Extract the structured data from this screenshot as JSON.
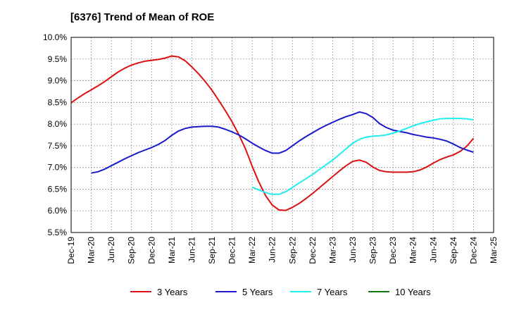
{
  "chart_data": {
    "type": "line",
    "title": "[6376]  Trend of Mean of ROE",
    "xlabel": "",
    "ylabel": "",
    "x_ticks": [
      "Dec-19",
      "Mar-20",
      "Jun-20",
      "Sep-20",
      "Dec-20",
      "Mar-21",
      "Jun-21",
      "Sep-21",
      "Dec-21",
      "Mar-22",
      "Jun-22",
      "Sep-22",
      "Dec-22",
      "Mar-23",
      "Jun-23",
      "Sep-23",
      "Dec-23",
      "Mar-24",
      "Jun-24",
      "Sep-24",
      "Dec-24",
      "Mar-25"
    ],
    "y_ticks": [
      "5.5%",
      "6.0%",
      "6.5%",
      "7.0%",
      "7.5%",
      "8.0%",
      "8.5%",
      "9.0%",
      "9.5%",
      "10.0%"
    ],
    "ylim": [
      5.5,
      10.0
    ],
    "grid": true,
    "legend_position": "bottom",
    "series": [
      {
        "name": "3 Years",
        "color": "#dd1111",
        "values": [
          [
            "Dec-19",
            8.49
          ],
          [
            "Jan-20",
            8.6
          ],
          [
            "Feb-20",
            8.7
          ],
          [
            "Mar-20",
            8.79
          ],
          [
            "Apr-20",
            8.88
          ],
          [
            "May-20",
            8.98
          ],
          [
            "Jun-20",
            9.09
          ],
          [
            "Jul-20",
            9.2
          ],
          [
            "Aug-20",
            9.29
          ],
          [
            "Sep-20",
            9.36
          ],
          [
            "Oct-20",
            9.41
          ],
          [
            "Nov-20",
            9.45
          ],
          [
            "Dec-20",
            9.47
          ],
          [
            "Jan-21",
            9.49
          ],
          [
            "Feb-21",
            9.52
          ],
          [
            "Mar-21",
            9.57
          ],
          [
            "Apr-21",
            9.55
          ],
          [
            "May-21",
            9.46
          ],
          [
            "Jun-21",
            9.32
          ],
          [
            "Jul-21",
            9.16
          ],
          [
            "Aug-21",
            8.98
          ],
          [
            "Sep-21",
            8.78
          ],
          [
            "Oct-21",
            8.55
          ],
          [
            "Nov-21",
            8.31
          ],
          [
            "Dec-21",
            8.05
          ],
          [
            "Jan-22",
            7.76
          ],
          [
            "Feb-22",
            7.43
          ],
          [
            "Mar-22",
            7.03
          ],
          [
            "Apr-22",
            6.66
          ],
          [
            "May-22",
            6.35
          ],
          [
            "Jun-22",
            6.13
          ],
          [
            "Jul-22",
            6.02
          ],
          [
            "Aug-22",
            6.01
          ],
          [
            "Sep-22",
            6.08
          ],
          [
            "Oct-22",
            6.17
          ],
          [
            "Nov-22",
            6.28
          ],
          [
            "Dec-22",
            6.4
          ],
          [
            "Jan-23",
            6.53
          ],
          [
            "Feb-23",
            6.66
          ],
          [
            "Mar-23",
            6.79
          ],
          [
            "Apr-23",
            6.92
          ],
          [
            "May-23",
            7.04
          ],
          [
            "Jun-23",
            7.14
          ],
          [
            "Jul-23",
            7.17
          ],
          [
            "Aug-23",
            7.12
          ],
          [
            "Sep-23",
            7.01
          ],
          [
            "Oct-23",
            6.93
          ],
          [
            "Nov-23",
            6.9
          ],
          [
            "Dec-23",
            6.89
          ],
          [
            "Jan-24",
            6.89
          ],
          [
            "Feb-24",
            6.89
          ],
          [
            "Mar-24",
            6.9
          ],
          [
            "Apr-24",
            6.94
          ],
          [
            "May-24",
            7.01
          ],
          [
            "Jun-24",
            7.1
          ],
          [
            "Jul-24",
            7.18
          ],
          [
            "Aug-24",
            7.24
          ],
          [
            "Sep-24",
            7.29
          ],
          [
            "Oct-24",
            7.37
          ],
          [
            "Nov-24",
            7.49
          ],
          [
            "Dec-24",
            7.67
          ]
        ]
      },
      {
        "name": "5 Years",
        "color": "#1a1acc",
        "values": [
          [
            "Mar-20",
            6.87
          ],
          [
            "Apr-20",
            6.9
          ],
          [
            "May-20",
            6.96
          ],
          [
            "Jun-20",
            7.04
          ],
          [
            "Jul-20",
            7.12
          ],
          [
            "Aug-20",
            7.2
          ],
          [
            "Sep-20",
            7.27
          ],
          [
            "Oct-20",
            7.34
          ],
          [
            "Nov-20",
            7.4
          ],
          [
            "Dec-20",
            7.46
          ],
          [
            "Jan-21",
            7.53
          ],
          [
            "Feb-21",
            7.62
          ],
          [
            "Mar-21",
            7.74
          ],
          [
            "Apr-21",
            7.84
          ],
          [
            "May-21",
            7.9
          ],
          [
            "Jun-21",
            7.93
          ],
          [
            "Jul-21",
            7.94
          ],
          [
            "Aug-21",
            7.95
          ],
          [
            "Sep-21",
            7.95
          ],
          [
            "Oct-21",
            7.93
          ],
          [
            "Nov-21",
            7.88
          ],
          [
            "Dec-21",
            7.82
          ],
          [
            "Jan-22",
            7.75
          ],
          [
            "Feb-22",
            7.66
          ],
          [
            "Mar-22",
            7.56
          ],
          [
            "Apr-22",
            7.47
          ],
          [
            "May-22",
            7.39
          ],
          [
            "Jun-22",
            7.33
          ],
          [
            "Jul-22",
            7.33
          ],
          [
            "Aug-22",
            7.39
          ],
          [
            "Sep-22",
            7.5
          ],
          [
            "Oct-22",
            7.61
          ],
          [
            "Nov-22",
            7.71
          ],
          [
            "Dec-22",
            7.8
          ],
          [
            "Jan-23",
            7.89
          ],
          [
            "Feb-23",
            7.97
          ],
          [
            "Mar-23",
            8.04
          ],
          [
            "Apr-23",
            8.11
          ],
          [
            "May-23",
            8.17
          ],
          [
            "Jun-23",
            8.22
          ],
          [
            "Jul-23",
            8.28
          ],
          [
            "Aug-23",
            8.24
          ],
          [
            "Sep-23",
            8.15
          ],
          [
            "Oct-23",
            8.01
          ],
          [
            "Nov-23",
            7.92
          ],
          [
            "Dec-23",
            7.86
          ],
          [
            "Jan-24",
            7.83
          ],
          [
            "Feb-24",
            7.8
          ],
          [
            "Mar-24",
            7.76
          ],
          [
            "Apr-24",
            7.73
          ],
          [
            "May-24",
            7.7
          ],
          [
            "Jun-24",
            7.68
          ],
          [
            "Jul-24",
            7.65
          ],
          [
            "Aug-24",
            7.61
          ],
          [
            "Sep-24",
            7.54
          ],
          [
            "Oct-24",
            7.46
          ],
          [
            "Nov-24",
            7.4
          ],
          [
            "Dec-24",
            7.35
          ]
        ]
      },
      {
        "name": "7 Years",
        "color": "#22eeee",
        "values": [
          [
            "Mar-22",
            6.55
          ],
          [
            "Apr-22",
            6.48
          ],
          [
            "May-22",
            6.42
          ],
          [
            "Jun-22",
            6.38
          ],
          [
            "Jul-22",
            6.38
          ],
          [
            "Aug-22",
            6.44
          ],
          [
            "Sep-22",
            6.54
          ],
          [
            "Oct-22",
            6.64
          ],
          [
            "Nov-22",
            6.74
          ],
          [
            "Dec-22",
            6.84
          ],
          [
            "Jan-23",
            6.95
          ],
          [
            "Feb-23",
            7.06
          ],
          [
            "Mar-23",
            7.17
          ],
          [
            "Apr-23",
            7.3
          ],
          [
            "May-23",
            7.43
          ],
          [
            "Jun-23",
            7.56
          ],
          [
            "Jul-23",
            7.65
          ],
          [
            "Aug-23",
            7.7
          ],
          [
            "Sep-23",
            7.72
          ],
          [
            "Oct-23",
            7.73
          ],
          [
            "Nov-23",
            7.75
          ],
          [
            "Dec-23",
            7.79
          ],
          [
            "Jan-24",
            7.84
          ],
          [
            "Feb-24",
            7.9
          ],
          [
            "Mar-24",
            7.96
          ],
          [
            "Apr-24",
            8.01
          ],
          [
            "May-24",
            8.05
          ],
          [
            "Jun-24",
            8.09
          ],
          [
            "Jul-24",
            8.12
          ],
          [
            "Aug-24",
            8.13
          ],
          [
            "Sep-24",
            8.13
          ],
          [
            "Oct-24",
            8.13
          ],
          [
            "Nov-24",
            8.12
          ],
          [
            "Dec-24",
            8.1
          ]
        ]
      },
      {
        "name": "10 Years",
        "color": "#0d7a0d",
        "values": []
      }
    ]
  }
}
